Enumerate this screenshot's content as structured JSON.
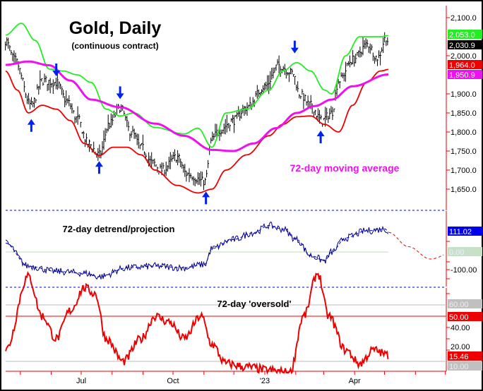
{
  "chart_data": [
    {
      "type": "ohlc",
      "title": "Gold, Daily",
      "subtitle": "(continuous contract)",
      "annotation": "72-day moving average",
      "y_ticks": [
        "2,100.0",
        "2,000.0",
        "1,900.0",
        "1,850.0",
        "1,800.0",
        "1,750.0",
        "1,700.0",
        "1,650.0"
      ],
      "ylim": [
        1620,
        2130
      ],
      "x_ticks": [
        "Jul",
        "Oct",
        "'23",
        "Apr"
      ],
      "last_labels": {
        "upper": "2,053.0",
        "close": "2,030.9",
        "lower": "1,964.0",
        "ma": "1,950.9"
      },
      "colors": {
        "upper": "#22ee22",
        "lower": "#ee0000",
        "ma": "#ee11ee",
        "bars": "#000000",
        "arrows": "#0022ee"
      },
      "price": [
        [
          "2022-04-16",
          2040
        ],
        [
          "2022-04-25",
          1990
        ],
        [
          "2022-05-12",
          1870
        ],
        [
          "2022-05-23",
          1935
        ],
        [
          "2022-06-06",
          1930
        ],
        [
          "2022-06-17",
          1880
        ],
        [
          "2022-06-27",
          1835
        ],
        [
          "2022-07-08",
          1770
        ],
        [
          "2022-07-19",
          1740
        ],
        [
          "2022-07-29",
          1820
        ],
        [
          "2022-08-09",
          1865
        ],
        [
          "2022-08-20",
          1800
        ],
        [
          "2022-08-30",
          1760
        ],
        [
          "2022-09-10",
          1720
        ],
        [
          "2022-09-20",
          1700
        ],
        [
          "2022-10-05",
          1735
        ],
        [
          "2022-10-15",
          1690
        ],
        [
          "2022-11-02",
          1670
        ],
        [
          "2022-11-09",
          1780
        ],
        [
          "2022-11-16",
          1805
        ],
        [
          "2022-11-30",
          1830
        ],
        [
          "2022-12-14",
          1865
        ],
        [
          "2023-01-01",
          1920
        ],
        [
          "2023-01-15",
          1975
        ],
        [
          "2023-01-29",
          1955
        ],
        [
          "2023-02-05",
          1900
        ],
        [
          "2023-02-16",
          1870
        ],
        [
          "2023-02-27",
          1830
        ],
        [
          "2023-03-09",
          1850
        ],
        [
          "2023-03-16",
          1935
        ],
        [
          "2023-03-30",
          1990
        ],
        [
          "2023-04-14",
          2030
        ],
        [
          "2023-04-24",
          1995
        ],
        [
          "2023-05-03",
          2050
        ],
        [
          "2023-05-05",
          2030.9
        ]
      ],
      "moving_average": [
        [
          "2022-04-16",
          1976
        ],
        [
          "2022-05-09",
          1985
        ],
        [
          "2022-05-30",
          1975
        ],
        [
          "2022-06-20",
          1935
        ],
        [
          "2022-07-11",
          1885
        ],
        [
          "2022-08-09",
          1865
        ],
        [
          "2022-09-13",
          1822
        ],
        [
          "2022-10-12",
          1790
        ],
        [
          "2022-11-09",
          1753
        ],
        [
          "2022-11-30",
          1750
        ],
        [
          "2022-12-21",
          1770
        ],
        [
          "2023-01-12",
          1810
        ],
        [
          "2023-02-02",
          1850
        ],
        [
          "2023-02-20",
          1868
        ],
        [
          "2023-03-09",
          1885
        ],
        [
          "2023-03-30",
          1920
        ],
        [
          "2023-05-05",
          1950.9
        ]
      ],
      "upper_band": [
        [
          "2022-04-16",
          2054
        ],
        [
          "2022-05-02",
          2085
        ],
        [
          "2022-05-16",
          2040
        ],
        [
          "2022-05-30",
          1965
        ],
        [
          "2022-06-13",
          1960
        ],
        [
          "2022-06-27",
          1950
        ],
        [
          "2022-07-11",
          1930
        ],
        [
          "2022-07-26",
          1860
        ],
        [
          "2022-08-09",
          1842
        ],
        [
          "2022-08-23",
          1850
        ],
        [
          "2022-09-13",
          1812
        ],
        [
          "2022-10-12",
          1795
        ],
        [
          "2022-10-26",
          1810
        ],
        [
          "2022-11-09",
          1760
        ],
        [
          "2022-11-23",
          1850
        ],
        [
          "2022-12-14",
          1860
        ],
        [
          "2023-01-05",
          1910
        ],
        [
          "2023-01-19",
          1960
        ],
        [
          "2023-02-02",
          1982
        ],
        [
          "2023-02-16",
          1960
        ],
        [
          "2023-03-02",
          1910
        ],
        [
          "2023-03-09",
          1900
        ],
        [
          "2023-03-23",
          2000
        ],
        [
          "2023-04-06",
          2050
        ],
        [
          "2023-04-27",
          2050
        ],
        [
          "2023-05-05",
          2053
        ]
      ],
      "lower_band": [
        [
          "2022-04-16",
          1960
        ],
        [
          "2022-04-28",
          1910
        ],
        [
          "2022-05-09",
          1850
        ],
        [
          "2022-05-23",
          1870
        ],
        [
          "2022-06-06",
          1860
        ],
        [
          "2022-06-20",
          1830
        ],
        [
          "2022-07-04",
          1770
        ],
        [
          "2022-07-19",
          1738
        ],
        [
          "2022-08-02",
          1760
        ],
        [
          "2022-08-16",
          1760
        ],
        [
          "2022-08-30",
          1740
        ],
        [
          "2022-09-13",
          1700
        ],
        [
          "2022-10-05",
          1660
        ],
        [
          "2022-10-26",
          1640
        ],
        [
          "2022-11-09",
          1650
        ],
        [
          "2022-11-23",
          1700
        ],
        [
          "2022-12-14",
          1740
        ],
        [
          "2023-01-05",
          1790
        ],
        [
          "2023-01-19",
          1820
        ],
        [
          "2023-02-02",
          1840
        ],
        [
          "2023-02-16",
          1842
        ],
        [
          "2023-03-02",
          1820
        ],
        [
          "2023-03-16",
          1800
        ],
        [
          "2023-03-30",
          1870
        ],
        [
          "2023-04-13",
          1930
        ],
        [
          "2023-04-27",
          1960
        ],
        [
          "2023-05-05",
          1964
        ]
      ],
      "arrows_down": [
        [
          "2022-06-06",
          1950
        ],
        [
          "2022-08-09",
          1890
        ],
        [
          "2023-01-31",
          2010
        ]
      ],
      "arrows_up": [
        [
          "2022-05-12",
          1830
        ],
        [
          "2022-07-19",
          1720
        ],
        [
          "2022-11-03",
          1640
        ],
        [
          "2023-02-26",
          1800
        ]
      ]
    },
    {
      "type": "line",
      "title": "72-day detrend/projection",
      "y_ticks": [
        "-100.00"
      ],
      "reference": 0,
      "ylim": [
        -220,
        240
      ],
      "last_labels": {
        "value": "111.02",
        "zero": "0.00"
      },
      "colors": {
        "line": "#000088",
        "zero_line": "#b8dcb8",
        "projection": "#ee0000"
      },
      "values": [
        [
          "2022-04-16",
          50
        ],
        [
          "2022-05-09",
          -80
        ],
        [
          "2022-06-06",
          -110
        ],
        [
          "2022-07-04",
          -120
        ],
        [
          "2022-07-19",
          -140
        ],
        [
          "2022-08-16",
          -90
        ],
        [
          "2022-09-13",
          -80
        ],
        [
          "2022-10-12",
          -90
        ],
        [
          "2022-11-02",
          -70
        ],
        [
          "2022-11-09",
          20
        ],
        [
          "2022-11-30",
          70
        ],
        [
          "2022-12-21",
          110
        ],
        [
          "2023-01-05",
          150
        ],
        [
          "2023-01-19",
          130
        ],
        [
          "2023-02-02",
          70
        ],
        [
          "2023-02-16",
          -20
        ],
        [
          "2023-03-02",
          -50
        ],
        [
          "2023-03-09",
          0
        ],
        [
          "2023-03-23",
          80
        ],
        [
          "2023-04-13",
          120
        ],
        [
          "2023-05-02",
          130
        ],
        [
          "2023-05-05",
          111.02
        ]
      ],
      "projection": [
        [
          "2023-05-05",
          111.02
        ],
        [
          "2023-05-25",
          30
        ],
        [
          "2023-06-16",
          -40
        ],
        [
          "2023-07-10",
          0
        ]
      ]
    },
    {
      "type": "line",
      "title": "72-day 'oversold'",
      "y_ticks": [
        "40.00",
        "20.00"
      ],
      "reference_lines": [
        {
          "value": 60,
          "label": "60.00",
          "color": "#bbbbbb"
        },
        {
          "value": 50,
          "label": "50.00",
          "color": "#ee0000"
        },
        {
          "value": 10,
          "label": "10.00",
          "color": "#bbbbbb"
        }
      ],
      "ylim": [
        0,
        90
      ],
      "last_labels": {
        "value": "15.46"
      },
      "colors": {
        "line": "#ee0000"
      },
      "values": [
        [
          "2022-04-16",
          20
        ],
        [
          "2022-05-09",
          85
        ],
        [
          "2022-05-23",
          50
        ],
        [
          "2022-06-06",
          30
        ],
        [
          "2022-06-20",
          55
        ],
        [
          "2022-07-04",
          75
        ],
        [
          "2022-07-15",
          70
        ],
        [
          "2022-07-26",
          30
        ],
        [
          "2022-08-12",
          10
        ],
        [
          "2022-08-30",
          30
        ],
        [
          "2022-09-13",
          50
        ],
        [
          "2022-09-27",
          45
        ],
        [
          "2022-10-12",
          30
        ],
        [
          "2022-10-29",
          50
        ],
        [
          "2022-11-09",
          25
        ],
        [
          "2022-11-23",
          8
        ],
        [
          "2022-12-14",
          5
        ],
        [
          "2023-01-05",
          2
        ],
        [
          "2023-01-26",
          0
        ],
        [
          "2023-02-09",
          50
        ],
        [
          "2023-02-23",
          88
        ],
        [
          "2023-03-06",
          50
        ],
        [
          "2023-03-23",
          20
        ],
        [
          "2023-04-06",
          8
        ],
        [
          "2023-04-20",
          20
        ],
        [
          "2023-05-05",
          15.46
        ]
      ]
    }
  ]
}
